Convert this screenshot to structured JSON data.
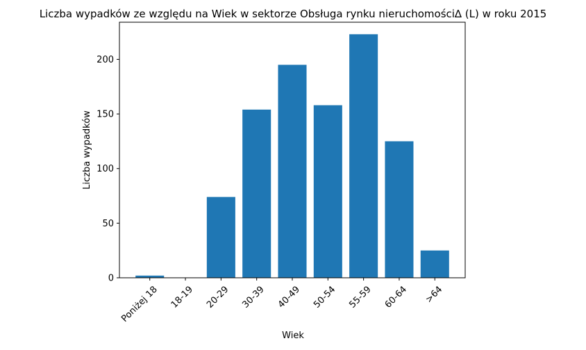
{
  "chart_data": {
    "type": "bar",
    "title": "Liczba wypadków ze względu na Wiek w sektorze  Obsługa rynku nieruchomości∆  (L) w roku 2015",
    "xlabel": "Wiek",
    "ylabel": "Liczba wypadków",
    "categories": [
      "Poniżej 18",
      "18-19",
      "20-29",
      "30-39",
      "40-49",
      "50-54",
      "55-59",
      "60-64",
      ">64"
    ],
    "values": [
      2,
      0,
      74,
      154,
      195,
      158,
      223,
      125,
      25
    ],
    "ylim": [
      0,
      234
    ],
    "yticks": [
      0,
      50,
      100,
      150,
      200
    ],
    "grid": false,
    "bar_color": "#1f77b4"
  }
}
